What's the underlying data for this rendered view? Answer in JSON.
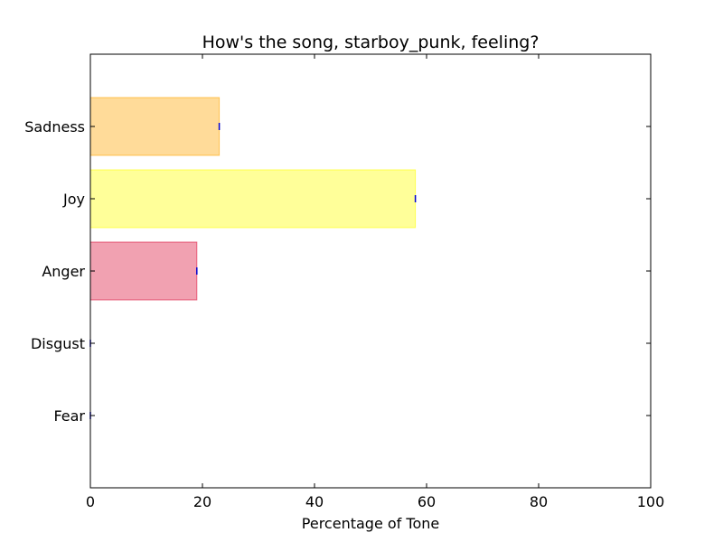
{
  "chart_data": {
    "type": "bar",
    "orientation": "horizontal",
    "title": "How's the song, starboy_punk, feeling?",
    "xlabel": "Percentage of Tone",
    "ylabel": "",
    "xlim": [
      0,
      100
    ],
    "xticks": [
      0,
      20,
      40,
      60,
      80,
      100
    ],
    "categories": [
      "Fear",
      "Disgust",
      "Anger",
      "Joy",
      "Sadness"
    ],
    "values": [
      0,
      0,
      19,
      58,
      23
    ],
    "bar_colors": [
      "#e8e8e8",
      "#c8a2c8",
      "#dc143c",
      "#ffff00",
      "#ffa500"
    ],
    "bar_alpha": 0.4,
    "error_marker_color": "#0000cc",
    "grid": false,
    "legend": "none"
  }
}
